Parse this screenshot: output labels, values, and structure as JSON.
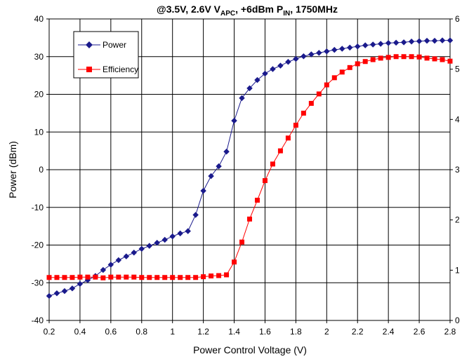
{
  "chart_data": {
    "type": "line",
    "title": {
      "prefix": "@3.5V, 2.6V V",
      "sub1": "APC",
      "mid": ", +6dBm P",
      "sub2": "IN",
      "suffix": ", 1750MHz"
    },
    "xlabel": "Power Control Voltage (V)",
    "ylabel": "Power (dBm)",
    "xlim": [
      0.2,
      2.8
    ],
    "ylim": [
      -40,
      40
    ],
    "x_ticks": [
      "0.2",
      "0.4",
      "0.6",
      "0.8",
      "1",
      "1.2",
      "1.4",
      "1.6",
      "1.8",
      "2",
      "2.2",
      "2.4",
      "2.6",
      "2.8"
    ],
    "y_ticks": [
      "-40",
      "-30",
      "-20",
      "-10",
      "0",
      "10",
      "20",
      "30",
      "40"
    ],
    "right_axis_partial_labels": [
      "6",
      "5",
      "4",
      "3",
      "2",
      "1",
      "0"
    ],
    "grid": true,
    "legend_position": "top-left",
    "series": [
      {
        "name": "Power",
        "color": "#1a1a8c",
        "marker": "diamond",
        "points": [
          [
            0.2,
            -33.5
          ],
          [
            0.25,
            -32.8
          ],
          [
            0.3,
            -32.2
          ],
          [
            0.35,
            -31.5
          ],
          [
            0.4,
            -30.3
          ],
          [
            0.45,
            -29.3
          ],
          [
            0.5,
            -28.2
          ],
          [
            0.55,
            -26.6
          ],
          [
            0.6,
            -25.2
          ],
          [
            0.65,
            -24.0
          ],
          [
            0.7,
            -23.0
          ],
          [
            0.75,
            -22.0
          ],
          [
            0.8,
            -21.0
          ],
          [
            0.85,
            -20.2
          ],
          [
            0.9,
            -19.4
          ],
          [
            0.95,
            -18.6
          ],
          [
            1.0,
            -17.7
          ],
          [
            1.05,
            -16.9
          ],
          [
            1.1,
            -16.3
          ],
          [
            1.15,
            -12.0
          ],
          [
            1.2,
            -5.6
          ],
          [
            1.25,
            -1.7
          ],
          [
            1.3,
            0.9
          ],
          [
            1.35,
            4.8
          ],
          [
            1.4,
            13.0
          ],
          [
            1.45,
            19.0
          ],
          [
            1.5,
            21.6
          ],
          [
            1.55,
            23.8
          ],
          [
            1.6,
            25.5
          ],
          [
            1.65,
            26.7
          ],
          [
            1.7,
            27.6
          ],
          [
            1.75,
            28.6
          ],
          [
            1.8,
            29.4
          ],
          [
            1.85,
            30.1
          ],
          [
            1.9,
            30.6
          ],
          [
            1.95,
            31.0
          ],
          [
            2.0,
            31.4
          ],
          [
            2.05,
            31.8
          ],
          [
            2.1,
            32.1
          ],
          [
            2.15,
            32.4
          ],
          [
            2.2,
            32.7
          ],
          [
            2.25,
            33.0
          ],
          [
            2.3,
            33.2
          ],
          [
            2.35,
            33.4
          ],
          [
            2.4,
            33.6
          ],
          [
            2.45,
            33.7
          ],
          [
            2.5,
            33.8
          ],
          [
            2.55,
            34.0
          ],
          [
            2.6,
            34.1
          ],
          [
            2.65,
            34.2
          ],
          [
            2.7,
            34.2
          ],
          [
            2.75,
            34.3
          ],
          [
            2.8,
            34.3
          ]
        ]
      },
      {
        "name": "Efficiency",
        "color": "#ff0000",
        "marker": "square",
        "points": [
          [
            0.2,
            -28.6
          ],
          [
            0.25,
            -28.6
          ],
          [
            0.3,
            -28.6
          ],
          [
            0.35,
            -28.6
          ],
          [
            0.4,
            -28.5
          ],
          [
            0.45,
            -28.5
          ],
          [
            0.5,
            -28.5
          ],
          [
            0.55,
            -28.7
          ],
          [
            0.6,
            -28.5
          ],
          [
            0.65,
            -28.5
          ],
          [
            0.7,
            -28.5
          ],
          [
            0.75,
            -28.5
          ],
          [
            0.8,
            -28.6
          ],
          [
            0.85,
            -28.6
          ],
          [
            0.9,
            -28.6
          ],
          [
            0.95,
            -28.6
          ],
          [
            1.0,
            -28.6
          ],
          [
            1.05,
            -28.6
          ],
          [
            1.1,
            -28.6
          ],
          [
            1.15,
            -28.6
          ],
          [
            1.2,
            -28.4
          ],
          [
            1.25,
            -28.2
          ],
          [
            1.3,
            -28.1
          ],
          [
            1.35,
            -27.9
          ],
          [
            1.4,
            -24.5
          ],
          [
            1.45,
            -19.2
          ],
          [
            1.5,
            -13.1
          ],
          [
            1.55,
            -8.1
          ],
          [
            1.6,
            -2.9
          ],
          [
            1.65,
            1.5
          ],
          [
            1.7,
            5.0
          ],
          [
            1.75,
            8.4
          ],
          [
            1.8,
            11.8
          ],
          [
            1.85,
            15.0
          ],
          [
            1.9,
            17.6
          ],
          [
            1.95,
            20.1
          ],
          [
            2.0,
            22.5
          ],
          [
            2.05,
            24.4
          ],
          [
            2.1,
            25.9
          ],
          [
            2.15,
            27.1
          ],
          [
            2.2,
            28.1
          ],
          [
            2.25,
            28.7
          ],
          [
            2.3,
            29.2
          ],
          [
            2.35,
            29.6
          ],
          [
            2.4,
            29.8
          ],
          [
            2.45,
            30.0
          ],
          [
            2.5,
            30.0
          ],
          [
            2.55,
            30.0
          ],
          [
            2.6,
            29.9
          ],
          [
            2.65,
            29.6
          ],
          [
            2.7,
            29.4
          ],
          [
            2.75,
            29.2
          ],
          [
            2.8,
            28.8
          ]
        ]
      }
    ]
  }
}
